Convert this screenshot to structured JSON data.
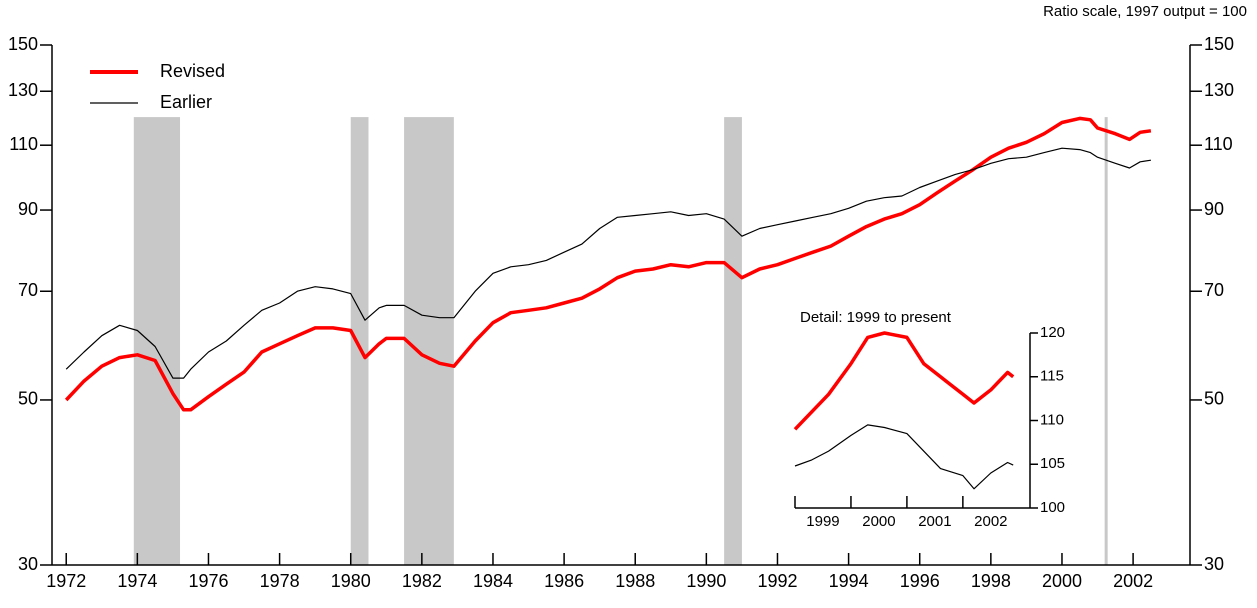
{
  "chart_data": [
    {
      "type": "line",
      "subtitle": "Ratio scale, 1997 output = 100",
      "log_scale": true,
      "x": [
        1972.0,
        1972.5,
        1973.0,
        1973.5,
        1974.0,
        1974.5,
        1975.0,
        1975.3,
        1975.5,
        1976.0,
        1976.5,
        1977.0,
        1977.5,
        1978.0,
        1978.5,
        1979.0,
        1979.5,
        1980.0,
        1980.4,
        1980.8,
        1981.0,
        1981.5,
        1982.0,
        1982.5,
        1982.9,
        1983.5,
        1984.0,
        1984.5,
        1985.0,
        1985.5,
        1986.0,
        1986.5,
        1987.0,
        1987.5,
        1988.0,
        1988.5,
        1989.0,
        1989.5,
        1990.0,
        1990.5,
        1991.0,
        1991.5,
        1992.0,
        1992.5,
        1993.0,
        1993.5,
        1994.0,
        1994.5,
        1995.0,
        1995.5,
        1996.0,
        1996.5,
        1997.0,
        1997.5,
        1998.0,
        1998.5,
        1999.0,
        1999.5,
        2000.0,
        2000.5,
        2000.8,
        2001.0,
        2001.5,
        2001.9,
        2002.2,
        2002.5
      ],
      "series": [
        {
          "name": "Revised",
          "color": "#ff0000",
          "values": [
            50,
            53,
            55.5,
            57,
            57.5,
            56.5,
            51,
            48.5,
            48.5,
            50.5,
            52.5,
            54.5,
            58,
            59.5,
            61,
            62.5,
            62.5,
            62,
            57,
            59.5,
            60.5,
            60.5,
            57.5,
            56,
            55.5,
            60,
            63.5,
            65.5,
            66,
            66.5,
            67.5,
            68.5,
            70.5,
            73,
            74.5,
            75,
            76,
            75.5,
            76.5,
            76.5,
            73,
            75,
            76,
            77.5,
            79,
            80.5,
            83,
            85.5,
            87.5,
            89,
            91.5,
            95,
            98.5,
            102,
            106,
            109,
            111,
            114,
            118,
            119.5,
            119,
            116,
            114,
            112,
            114.5,
            115
          ]
        },
        {
          "name": "Earlier",
          "color": "#000000",
          "values": [
            55,
            58,
            61,
            63,
            62,
            59,
            53.5,
            53.5,
            55,
            58,
            60,
            63,
            66,
            67.5,
            70,
            71,
            70.5,
            69.5,
            64,
            66.5,
            67,
            67,
            65,
            64.5,
            64.5,
            70,
            74,
            75.5,
            76,
            77,
            79,
            81,
            85,
            88,
            88.5,
            89,
            89.5,
            88.5,
            89,
            87.5,
            83,
            85,
            86,
            87,
            88,
            89,
            90.5,
            92.5,
            93.5,
            94,
            96.5,
            98.5,
            100.5,
            102,
            104,
            105.5,
            106,
            107.5,
            109,
            108.5,
            107.5,
            106,
            104,
            102.5,
            104.5,
            105
          ]
        }
      ],
      "shading": [
        [
          1973.9,
          1975.2
        ],
        [
          1980.0,
          1980.5
        ],
        [
          1981.5,
          1982.9
        ],
        [
          1990.5,
          1991.0
        ],
        [
          2001.2,
          2001.25
        ]
      ],
      "xlim": [
        1971.6,
        2003.6
      ],
      "xticks": [
        1972,
        1974,
        1976,
        1978,
        1980,
        1982,
        1984,
        1986,
        1988,
        1990,
        1992,
        1994,
        1996,
        1998,
        2000,
        2002
      ],
      "ylim": [
        30,
        150
      ],
      "yticks": [
        30,
        50,
        70,
        90,
        110,
        130,
        150
      ]
    },
    {
      "type": "line",
      "title": "Detail: 1999 to present",
      "x": [
        1999.0,
        1999.3,
        1999.6,
        2000.0,
        2000.3,
        2000.6,
        2001.0,
        2001.3,
        2001.6,
        2002.0,
        2002.2,
        2002.5,
        2002.8,
        2002.9
      ],
      "series": [
        {
          "name": "Revised",
          "color": "#ff0000",
          "values": [
            109,
            111,
            113,
            116.5,
            119.5,
            120,
            119.5,
            116.5,
            115,
            113,
            112,
            113.5,
            115.5,
            115
          ]
        },
        {
          "name": "Earlier",
          "color": "#000000",
          "values": [
            104.8,
            105.5,
            106.5,
            108.3,
            109.5,
            109.2,
            108.5,
            106.5,
            104.5,
            103.7,
            102.2,
            104,
            105.2,
            104.9
          ]
        }
      ],
      "xlim": [
        1999,
        2003.2
      ],
      "xticks": [
        1999,
        2000,
        2001,
        2002
      ],
      "ylim": [
        100,
        120
      ],
      "yticks": [
        100,
        105,
        110,
        115,
        120
      ]
    }
  ]
}
